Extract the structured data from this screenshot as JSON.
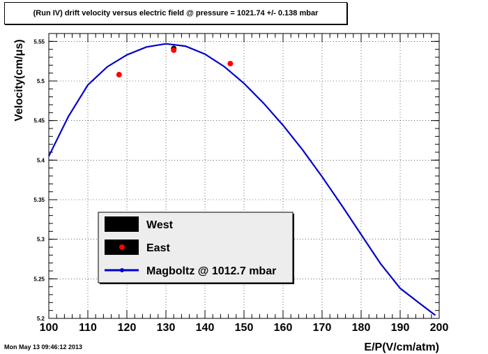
{
  "title": "(Run IV) drift velocity versus electric field @ pressure = 1021.74 +/- 0.138 mbar",
  "footer": "Mon May 13 09:46:12 2013",
  "chart_data": {
    "type": "scatter",
    "xlabel": "E/P(V/cm/atm)",
    "ylabel": "Velocity(cm/μs)",
    "xlim": [
      100,
      200
    ],
    "ylim": [
      5.2,
      5.56
    ],
    "x_ticks": [
      "100",
      "110",
      "120",
      "130",
      "140",
      "150",
      "160",
      "170",
      "180",
      "190",
      "200"
    ],
    "y_ticks": [
      "5.2",
      "5.25",
      "5.3",
      "5.35",
      "5.4",
      "5.45",
      "5.5",
      "5.55"
    ],
    "grid": true,
    "legend_position": "bottom-left",
    "series": [
      {
        "name": "West",
        "kind": "points",
        "color": "#000000",
        "x": [
          132
        ],
        "y": [
          5.541
        ]
      },
      {
        "name": "East",
        "kind": "points",
        "color": "#ff0000",
        "x": [
          118,
          132,
          146.5
        ],
        "y": [
          5.508,
          5.539,
          5.522
        ]
      },
      {
        "name": "Magboltz @ 1012.7 mbar",
        "kind": "line",
        "color": "#0000cc",
        "x": [
          100,
          105,
          110,
          115,
          120,
          125,
          130,
          135,
          140,
          145,
          150,
          155,
          160,
          165,
          170,
          175,
          180,
          185,
          190,
          195,
          199
        ],
        "y": [
          5.405,
          5.455,
          5.495,
          5.518,
          5.533,
          5.543,
          5.547,
          5.544,
          5.534,
          5.518,
          5.497,
          5.472,
          5.444,
          5.413,
          5.379,
          5.343,
          5.306,
          5.269,
          5.238,
          5.219,
          5.204
        ]
      }
    ]
  }
}
